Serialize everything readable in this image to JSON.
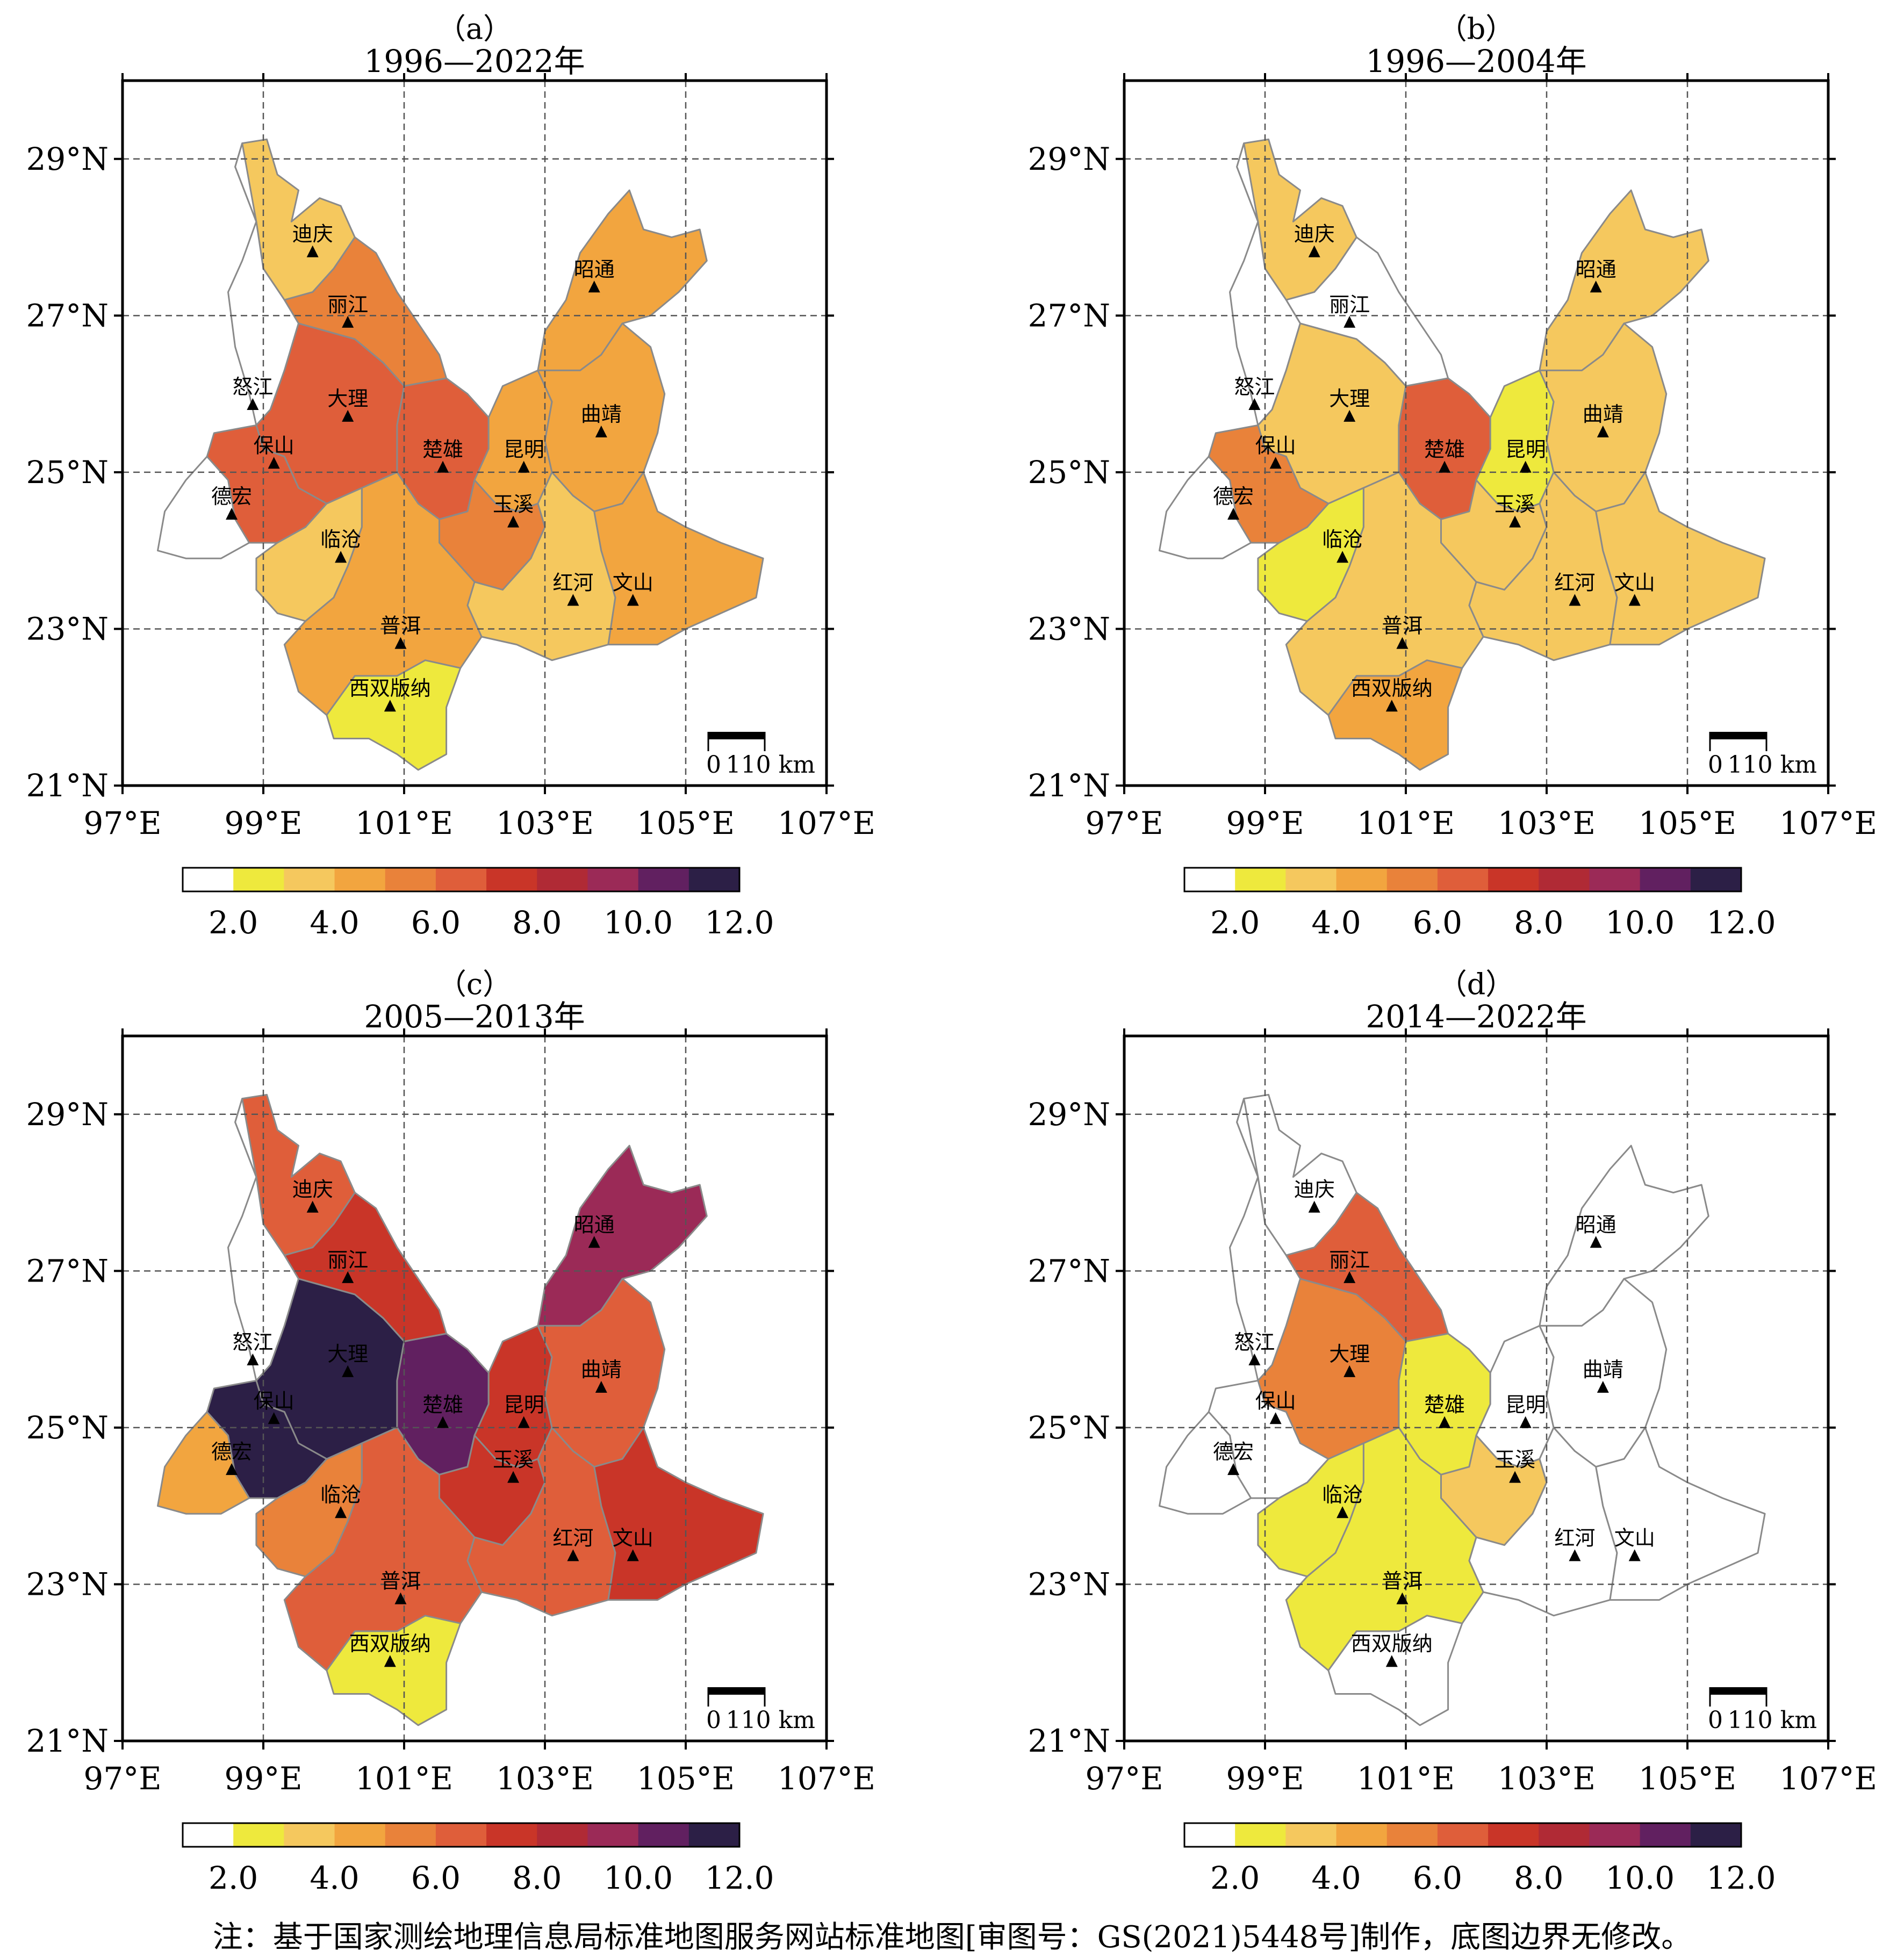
{
  "axes": {
    "lon_labels": [
      "97°E",
      "99°E",
      "101°E",
      "103°E",
      "105°E",
      "107°E"
    ],
    "lat_labels": [
      "21°N",
      "23°N",
      "25°N",
      "27°N",
      "29°N"
    ],
    "lon_values": [
      97,
      99,
      101,
      103,
      105,
      107
    ],
    "lat_values": [
      21,
      23,
      25,
      27,
      29
    ],
    "lon_range": [
      97,
      107
    ],
    "lat_range": [
      21,
      30
    ]
  },
  "scale_bar": {
    "start": "0",
    "end": "110 km"
  },
  "colorbar": {
    "colors": [
      "#ffffff",
      "#eee93d",
      "#f5c85e",
      "#f2a53f",
      "#e9823a",
      "#df5e3a",
      "#c93528",
      "#b02a35",
      "#9b2a57",
      "#612060",
      "#2c1f46"
    ],
    "tick_labels": [
      "2.0",
      "4.0",
      "6.0",
      "8.0",
      "10.0",
      "12.0"
    ],
    "tick_values": [
      2,
      4,
      6,
      8,
      10,
      12
    ],
    "range": [
      1,
      12
    ]
  },
  "cities": [
    {
      "name": "迪庆",
      "lon": 99.7,
      "lat": 27.8
    },
    {
      "name": "丽江",
      "lon": 100.2,
      "lat": 26.9
    },
    {
      "name": "怒江",
      "lon": 98.85,
      "lat": 25.85
    },
    {
      "name": "大理",
      "lon": 100.2,
      "lat": 25.7
    },
    {
      "name": "保山",
      "lon": 99.15,
      "lat": 25.1
    },
    {
      "name": "德宏",
      "lon": 98.55,
      "lat": 24.45
    },
    {
      "name": "临沧",
      "lon": 100.1,
      "lat": 23.9
    },
    {
      "name": "楚雄",
      "lon": 101.55,
      "lat": 25.05
    },
    {
      "name": "昆明",
      "lon": 102.7,
      "lat": 25.05
    },
    {
      "name": "玉溪",
      "lon": 102.55,
      "lat": 24.35
    },
    {
      "name": "昭通",
      "lon": 103.7,
      "lat": 27.35
    },
    {
      "name": "曲靖",
      "lon": 103.8,
      "lat": 25.5
    },
    {
      "name": "红河",
      "lon": 103.4,
      "lat": 23.35
    },
    {
      "name": "文山",
      "lon": 104.25,
      "lat": 23.35
    },
    {
      "name": "普洱",
      "lon": 100.95,
      "lat": 22.8
    },
    {
      "name": "西双版纳",
      "lon": 100.8,
      "lat": 22.0
    }
  ],
  "panels": [
    {
      "label": "（a）",
      "period": "1996—2022年",
      "values": {
        "迪庆": 3.5,
        "丽江": 5.5,
        "怒江": 1.5,
        "大理": 6.5,
        "保山": 6.5,
        "德宏": 1.5,
        "临沧": 3.5,
        "楚雄": 6.5,
        "昆明": 4.5,
        "玉溪": 5.5,
        "昭通": 4.5,
        "曲靖": 4.5,
        "红河": 3.5,
        "文山": 4.5,
        "普洱": 4.5,
        "西双版纳": 2.5
      }
    },
    {
      "label": "（b）",
      "period": "1996—2004年",
      "values": {
        "迪庆": 3.5,
        "丽江": 1.5,
        "怒江": 1.5,
        "大理": 3.5,
        "保山": 5.5,
        "德宏": 1.5,
        "临沧": 2.5,
        "楚雄": 6.5,
        "昆明": 2.5,
        "玉溪": 3.5,
        "昭通": 3.5,
        "曲靖": 3.5,
        "红河": 3.5,
        "文山": 3.5,
        "普洱": 3.5,
        "西双版纳": 4.5
      }
    },
    {
      "label": "（c）",
      "period": "2005—2013年",
      "values": {
        "迪庆": 6.5,
        "丽江": 7.5,
        "怒江": 1.5,
        "大理": 11.5,
        "保山": 11.5,
        "德宏": 4.5,
        "临沧": 5.5,
        "楚雄": 10.5,
        "昆明": 7.5,
        "玉溪": 7.5,
        "昭通": 9.5,
        "曲靖": 6.5,
        "红河": 6.5,
        "文山": 7.5,
        "普洱": 6.5,
        "西双版纳": 2.5
      }
    },
    {
      "label": "（d）",
      "period": "2014—2022年",
      "values": {
        "迪庆": 1.5,
        "丽江": 6.5,
        "怒江": 1.5,
        "大理": 5.5,
        "保山": 1.5,
        "德宏": 1.5,
        "临沧": 2.5,
        "楚雄": 2.5,
        "昆明": 1.5,
        "玉溪": 3.5,
        "昭通": 1.5,
        "曲靖": 1.5,
        "红河": 1.5,
        "文山": 1.5,
        "普洱": 2.5,
        "西双版纳": 1.5
      }
    }
  ],
  "footnote": "注：基于国家测绘地理信息局标准地图服务网站标准地图[审图号：GS(2021)5448号]制作，底图边界无修改。"
}
